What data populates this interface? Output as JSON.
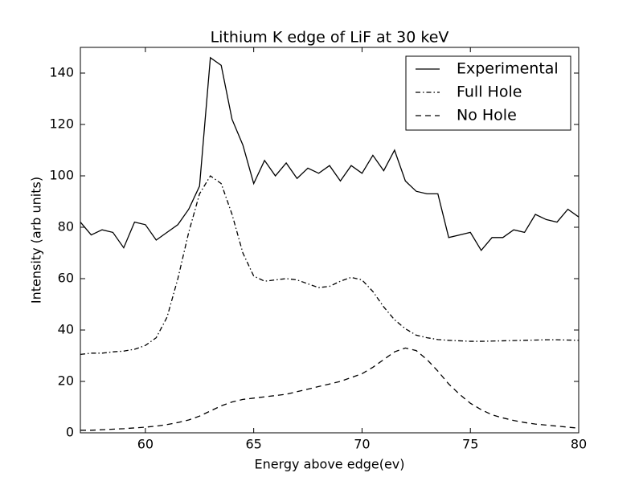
{
  "chart_data": {
    "type": "line",
    "title": "Lithium K edge of LiF at 30 keV",
    "x_label": "Energy above edge(ev)",
    "y_label": "Intensity (arb units)",
    "x": [
      57,
      57.5,
      58,
      58.5,
      59,
      59.5,
      60,
      60.5,
      61,
      61.5,
      62,
      62.5,
      63,
      63.5,
      64,
      64.5,
      65,
      65.5,
      66,
      66.5,
      67,
      67.5,
      68,
      68.5,
      69,
      69.5,
      70,
      70.5,
      71,
      71.5,
      72,
      72.5,
      73,
      73.5,
      74,
      74.5,
      75,
      75.5,
      76,
      76.5,
      77,
      77.5,
      78,
      78.5,
      79,
      79.5,
      80
    ],
    "series": [
      {
        "name": "Experimental",
        "color": "#000000",
        "linestyle": "solid",
        "values": [
          82,
          77,
          79,
          78,
          72,
          82,
          81,
          75,
          78,
          81,
          87,
          96,
          146,
          143,
          122,
          112,
          97,
          106,
          100,
          105,
          99,
          103,
          101,
          104,
          98,
          104,
          101,
          108,
          102,
          110,
          98,
          94,
          93,
          93,
          76,
          77,
          78,
          71,
          76,
          76,
          79,
          78,
          85,
          83,
          82,
          87,
          84
        ]
      },
      {
        "name": "Full Hole",
        "color": "#000000",
        "linestyle": "dashdot",
        "values": [
          30.5,
          31,
          31,
          31.5,
          31.8,
          32.5,
          34,
          37,
          45,
          60,
          78,
          93,
          100,
          97,
          85,
          70,
          61,
          59,
          59.5,
          60,
          59.5,
          58,
          56.5,
          57,
          59,
          60.5,
          59.5,
          55,
          49,
          44,
          40.5,
          38,
          37,
          36.3,
          36,
          35.8,
          35.6,
          35.6,
          35.7,
          35.8,
          35.9,
          36,
          36.1,
          36.2,
          36.2,
          36.1,
          36
        ]
      },
      {
        "name": "No Hole",
        "color": "#000000",
        "linestyle": "dashed",
        "values": [
          1,
          1,
          1.2,
          1.4,
          1.6,
          1.9,
          2.2,
          2.6,
          3.2,
          4,
          5,
          6.5,
          8.5,
          10.5,
          12,
          13,
          13.5,
          14,
          14.5,
          15,
          16,
          17,
          18,
          19,
          20,
          21.5,
          23,
          25.5,
          28.5,
          31.5,
          33,
          32,
          28.5,
          24,
          19,
          15,
          11.5,
          9,
          7,
          5.8,
          4.8,
          4,
          3.4,
          3,
          2.6,
          2.2,
          1.8
        ]
      }
    ],
    "xlim": [
      57,
      80
    ],
    "xticks": [
      60,
      65,
      70,
      75,
      80
    ],
    "ylim": [
      0,
      150
    ],
    "yticks": [
      0,
      20,
      40,
      60,
      80,
      100,
      120,
      140
    ],
    "legend": "upper right",
    "grid": false
  }
}
